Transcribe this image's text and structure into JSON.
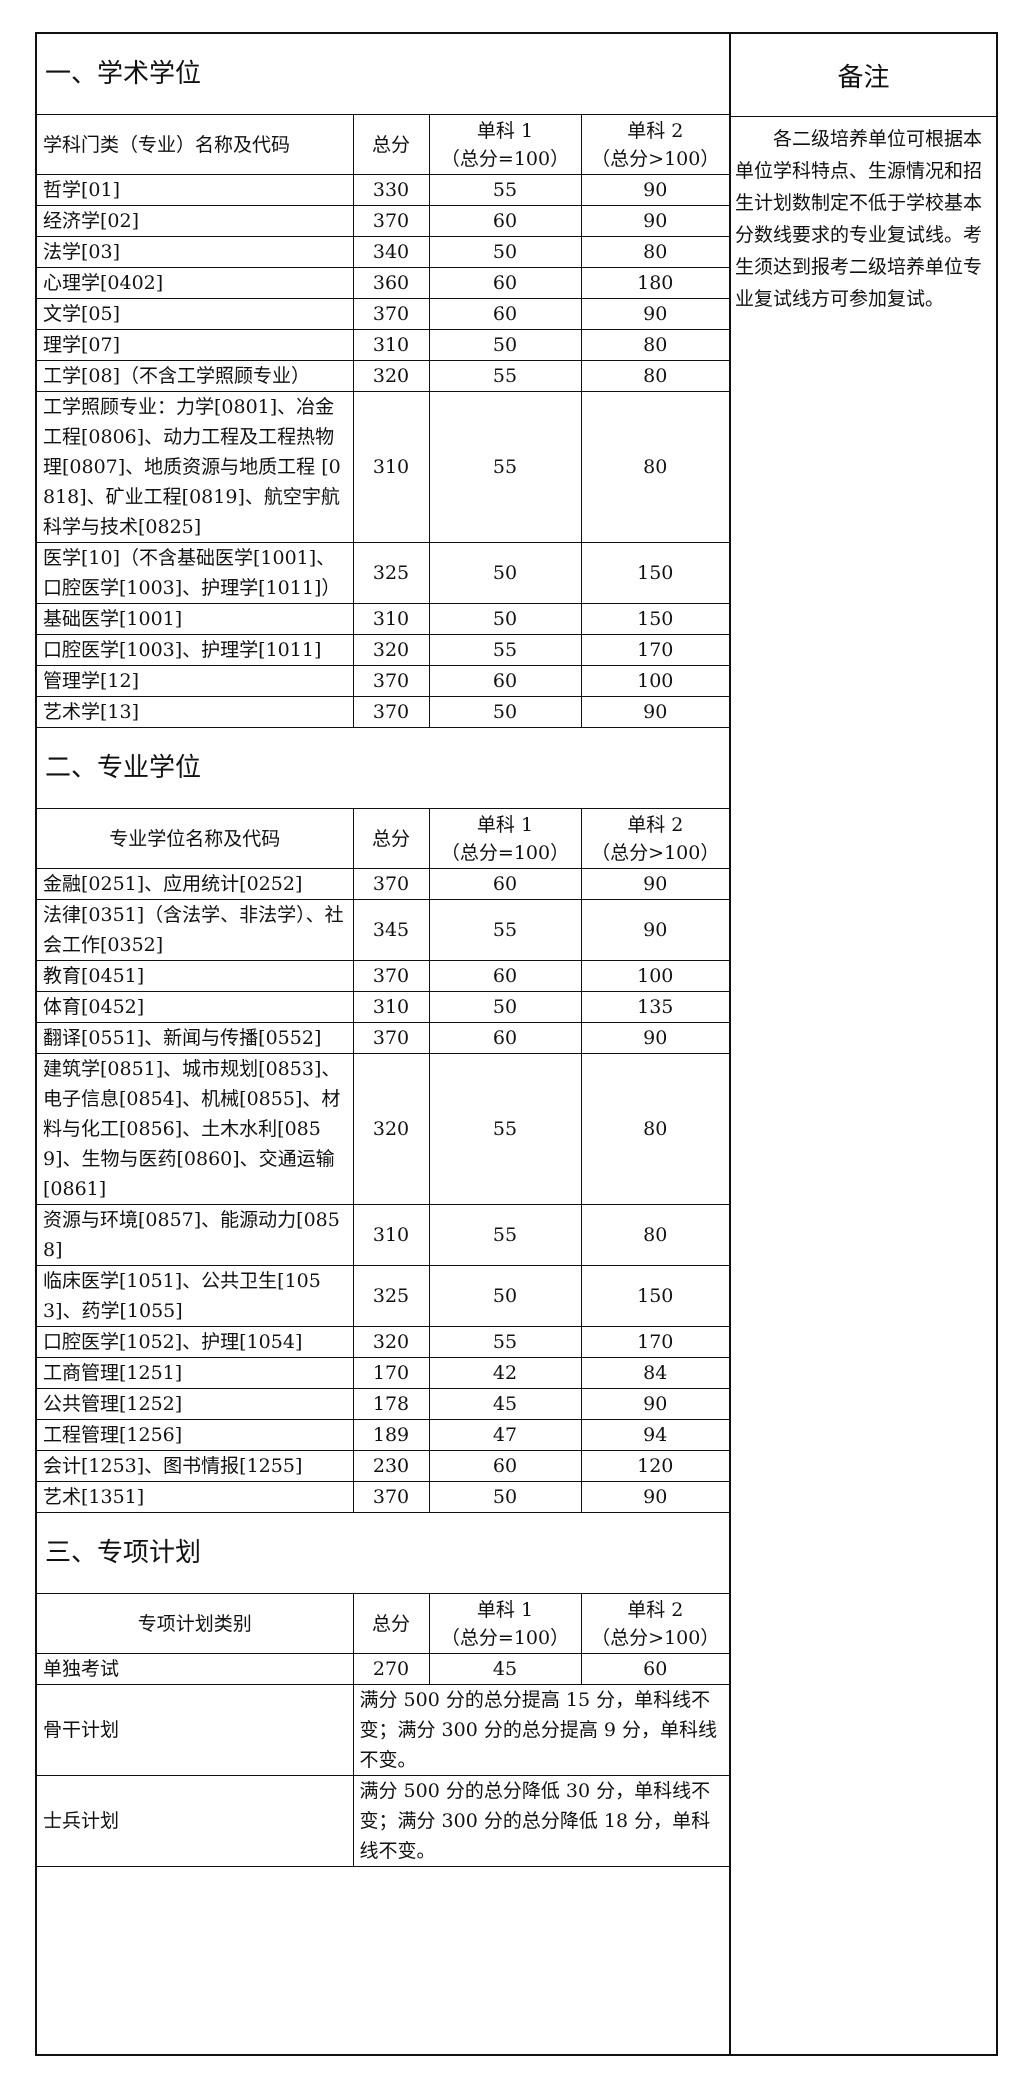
{
  "remarks": {
    "title": "备注",
    "text": "各二级培养单位可根据本单位学科特点、生源情况和招生计划数制定不低于学校基本分数线要求的专业复试线。考生须达到报考二级培养单位专业复试线方可参加复试。"
  },
  "sections": [
    {
      "title": "一、学术学位",
      "headers": [
        "学科门类（专业）名称及代码",
        "总分",
        "单科 1\n（总分=100）",
        "单科 2\n（总分>100）"
      ],
      "rows": [
        {
          "name": "哲学[01]",
          "total": "330",
          "s1": "55",
          "s2": "90"
        },
        {
          "name": "经济学[02]",
          "total": "370",
          "s1": "60",
          "s2": "90"
        },
        {
          "name": "法学[03]",
          "total": "340",
          "s1": "50",
          "s2": "80"
        },
        {
          "name": "心理学[0402]",
          "total": "360",
          "s1": "60",
          "s2": "180"
        },
        {
          "name": "文学[05]",
          "total": "370",
          "s1": "60",
          "s2": "90"
        },
        {
          "name": "理学[07]",
          "total": "310",
          "s1": "50",
          "s2": "80"
        },
        {
          "name": "工学[08]（不含工学照顾专业）",
          "total": "320",
          "s1": "55",
          "s2": "80"
        },
        {
          "name": "工学照顾专业：力学[0801]、冶金工程[0806]、动力工程及工程热物理[0807]、地质资源与地质工程 [0818]、矿业工程[0819]、航空宇航科学与技术[0825]",
          "total": "310",
          "s1": "55",
          "s2": "80"
        },
        {
          "name": "医学[10]（不含基础医学[1001]、口腔医学[1003]、护理学[1011]）",
          "total": "325",
          "s1": "50",
          "s2": "150"
        },
        {
          "name": "基础医学[1001]",
          "total": "310",
          "s1": "50",
          "s2": "150"
        },
        {
          "name": "口腔医学[1003]、护理学[1011]",
          "total": "320",
          "s1": "55",
          "s2": "170"
        },
        {
          "name": "管理学[12]",
          "total": "370",
          "s1": "60",
          "s2": "100"
        },
        {
          "name": "艺术学[13]",
          "total": "370",
          "s1": "50",
          "s2": "90"
        }
      ]
    },
    {
      "title": "二、专业学位",
      "headers": [
        "专业学位名称及代码",
        "总分",
        "单科 1\n（总分=100）",
        "单科 2\n（总分>100）"
      ],
      "rows": [
        {
          "name": "金融[0251]、应用统计[0252]",
          "total": "370",
          "s1": "60",
          "s2": "90"
        },
        {
          "name": "法律[0351]（含法学、非法学）、社会工作[0352]",
          "total": "345",
          "s1": "55",
          "s2": "90"
        },
        {
          "name": "教育[0451]",
          "total": "370",
          "s1": "60",
          "s2": "100"
        },
        {
          "name": "体育[0452]",
          "total": "310",
          "s1": "50",
          "s2": "135"
        },
        {
          "name": "翻译[0551]、新闻与传播[0552]",
          "total": "370",
          "s1": "60",
          "s2": "90"
        },
        {
          "name": "建筑学[0851]、城市规划[0853]、电子信息[0854]、机械[0855]、材料与化工[0856]、土木水利[0859]、生物与医药[0860]、交通运输[0861]",
          "total": "320",
          "s1": "55",
          "s2": "80"
        },
        {
          "name": "资源与环境[0857]、能源动力[0858]",
          "total": "310",
          "s1": "55",
          "s2": "80"
        },
        {
          "name": "临床医学[1051]、公共卫生[1053]、药学[1055]",
          "total": "325",
          "s1": "50",
          "s2": "150"
        },
        {
          "name": "口腔医学[1052]、护理[1054]",
          "total": "320",
          "s1": "55",
          "s2": "170"
        },
        {
          "name": "工商管理[1251]",
          "total": "170",
          "s1": "42",
          "s2": "84"
        },
        {
          "name": "公共管理[1252]",
          "total": "178",
          "s1": "45",
          "s2": "90"
        },
        {
          "name": "工程管理[1256]",
          "total": "189",
          "s1": "47",
          "s2": "94"
        },
        {
          "name": "会计[1253]、图书情报[1255]",
          "total": "230",
          "s1": "60",
          "s2": "120"
        },
        {
          "name": "艺术[1351]",
          "total": "370",
          "s1": "50",
          "s2": "90"
        }
      ]
    },
    {
      "title": "三、专项计划",
      "headers": [
        "专项计划类别",
        "总分",
        "单科 1\n（总分=100）",
        "单科 2\n（总分>100）"
      ],
      "rows": [
        {
          "name": "单独考试",
          "total": "270",
          "s1": "45",
          "s2": "60"
        },
        {
          "name": "骨干计划",
          "note": "满分 500 分的总分提高 15 分，单科线不变；满分 300 分的总分提高 9 分，单科线不变。"
        },
        {
          "name": "士兵计划",
          "note": "满分 500 分的总分降低 30 分，单科线不变；满分 300 分的总分降低 18 分，单科线不变。"
        }
      ]
    }
  ]
}
